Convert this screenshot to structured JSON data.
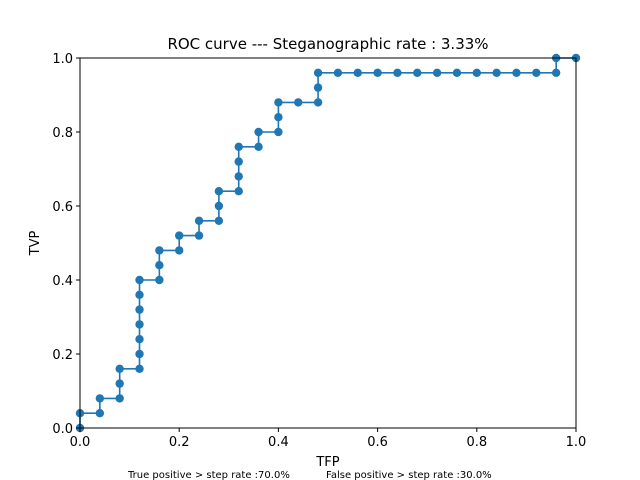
{
  "chart_data": {
    "type": "line",
    "title": "ROC curve --- Steganographic rate : 3.33%",
    "xlabel": "TFP",
    "ylabel": "TVP",
    "xlim": [
      0,
      1
    ],
    "ylim": [
      0,
      1
    ],
    "grid": false,
    "xticks": [
      "0.0",
      "0.2",
      "0.4",
      "0.6",
      "0.8",
      "1.0"
    ],
    "yticks": [
      "0.0",
      "0.2",
      "0.4",
      "0.6",
      "0.8",
      "1.0"
    ],
    "series": [
      {
        "color": "#1f77b4",
        "marker": "circle",
        "x": [
          0.0,
          0.0,
          0.04,
          0.04,
          0.08,
          0.08,
          0.08,
          0.12,
          0.12,
          0.12,
          0.12,
          0.12,
          0.12,
          0.12,
          0.16,
          0.16,
          0.16,
          0.2,
          0.2,
          0.24,
          0.24,
          0.28,
          0.28,
          0.28,
          0.32,
          0.32,
          0.32,
          0.32,
          0.36,
          0.36,
          0.4,
          0.4,
          0.4,
          0.44,
          0.48,
          0.48,
          0.48,
          0.52,
          0.56,
          0.6,
          0.64,
          0.68,
          0.72,
          0.76,
          0.8,
          0.84,
          0.88,
          0.92,
          0.96,
          0.96,
          1.0
        ],
        "y": [
          0.0,
          0.04,
          0.04,
          0.08,
          0.08,
          0.12,
          0.16,
          0.16,
          0.2,
          0.24,
          0.28,
          0.32,
          0.36,
          0.4,
          0.4,
          0.44,
          0.48,
          0.48,
          0.52,
          0.52,
          0.56,
          0.56,
          0.6,
          0.64,
          0.64,
          0.68,
          0.72,
          0.76,
          0.76,
          0.8,
          0.8,
          0.84,
          0.88,
          0.88,
          0.88,
          0.92,
          0.96,
          0.96,
          0.96,
          0.96,
          0.96,
          0.96,
          0.96,
          0.96,
          0.96,
          0.96,
          0.96,
          0.96,
          0.96,
          1.0,
          1.0
        ]
      }
    ]
  },
  "footer": {
    "true_positive": "True positive > step rate :70.0%",
    "false_positive": "False positive > step rate :30.0%"
  }
}
